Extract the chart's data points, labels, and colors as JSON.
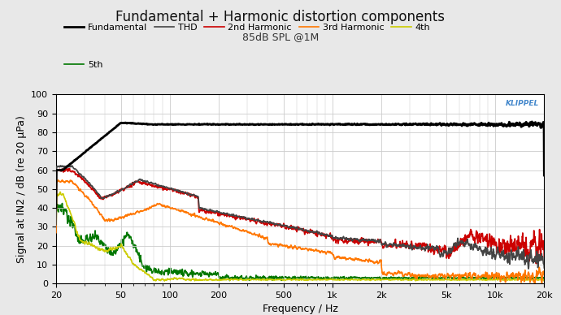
{
  "title": "Fundamental + Harmonic distortion components",
  "subtitle": "85dB SPL @1M",
  "xlabel": "Frequency / Hz",
  "ylabel": "Signal at IN2 / dB (re 20 μPa)",
  "ylim": [
    0,
    100
  ],
  "xlim_log": [
    20,
    20000
  ],
  "background_color": "#e8e8e8",
  "plot_bg_color": "#ffffff",
  "grid_color": "#cccccc",
  "title_fontsize": 12,
  "subtitle_fontsize": 9,
  "label_fontsize": 9,
  "tick_fontsize": 8,
  "legend_entries": [
    "Fundamental",
    "THD",
    "2nd Harmonic",
    "3rd Harmonic",
    "4th",
    "5th"
  ],
  "legend_colors": [
    "#000000",
    "#444444",
    "#cc0000",
    "#ff7700",
    "#cccc00",
    "#007700"
  ],
  "legend_lw": [
    2.0,
    1.2,
    1.2,
    1.2,
    1.2,
    1.2
  ],
  "klippel_color": "#4488cc",
  "klippel_text": "KLIPPEL"
}
